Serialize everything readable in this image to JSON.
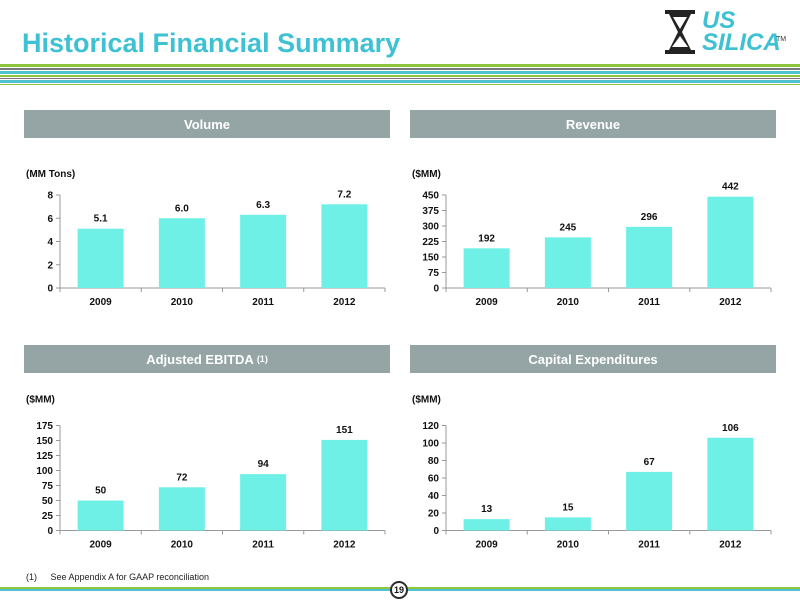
{
  "page": {
    "title": "Historical Financial Summary",
    "logo_line1": "US",
    "logo_line2": "SILICA",
    "logo_tm": "TM",
    "footnote_num": "(1)",
    "footnote_text": "See Appendix A for GAAP reconciliation",
    "page_number": "19"
  },
  "colors": {
    "title": "#3ec1d3",
    "header_bg": "#95a5a6",
    "bar_fill": "#6ff0e6",
    "stripe_green": "#8cc63f",
    "stripe_gray": "#7a7a7a",
    "stripe_teal": "#4ec3cf"
  },
  "panels": [
    {
      "header": "Volume",
      "sup": ""
    },
    {
      "header": "Revenue",
      "sup": ""
    },
    {
      "header": "Adjusted EBITDA",
      "sup": "(1)"
    },
    {
      "header": "Capital Expenditures",
      "sup": ""
    }
  ],
  "chart_data": [
    {
      "type": "bar",
      "title": "Volume",
      "unit_label": "(MM Tons)",
      "categories": [
        "2009",
        "2010",
        "2011",
        "2012"
      ],
      "values": [
        5.1,
        6.0,
        6.3,
        7.2
      ],
      "value_labels": [
        "5.1",
        "6.0",
        "6.3",
        "7.2"
      ],
      "ylim": [
        0,
        8
      ],
      "yticks": [
        0,
        2,
        4,
        6,
        8
      ],
      "grid": false
    },
    {
      "type": "bar",
      "title": "Revenue",
      "unit_label": "($MM)",
      "categories": [
        "2009",
        "2010",
        "2011",
        "2012"
      ],
      "values": [
        192,
        245,
        296,
        442
      ],
      "value_labels": [
        "192",
        "245",
        "296",
        "442"
      ],
      "ylim": [
        0,
        450
      ],
      "yticks": [
        0,
        75,
        150,
        225,
        300,
        375,
        450
      ],
      "grid": false
    },
    {
      "type": "bar",
      "title": "Adjusted EBITDA (1)",
      "unit_label": "($MM)",
      "categories": [
        "2009",
        "2010",
        "2011",
        "2012"
      ],
      "values": [
        50,
        72,
        94,
        151
      ],
      "value_labels": [
        "50",
        "72",
        "94",
        "151"
      ],
      "ylim": [
        0,
        175
      ],
      "yticks": [
        0,
        25,
        50,
        75,
        100,
        125,
        150,
        175
      ],
      "grid": false
    },
    {
      "type": "bar",
      "title": "Capital Expenditures",
      "unit_label": "($MM)",
      "categories": [
        "2009",
        "2010",
        "2011",
        "2012"
      ],
      "values": [
        13,
        15,
        67,
        106
      ],
      "value_labels": [
        "13",
        "15",
        "67",
        "106"
      ],
      "ylim": [
        0,
        120
      ],
      "yticks": [
        0,
        20,
        40,
        60,
        80,
        100,
        120
      ],
      "grid": false
    }
  ]
}
